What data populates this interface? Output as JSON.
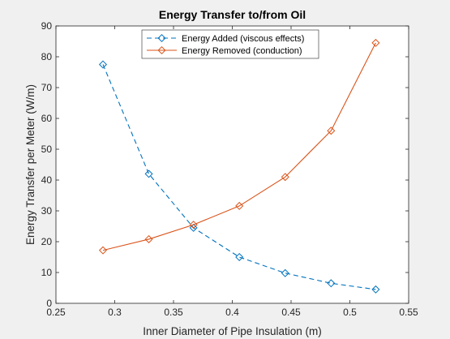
{
  "chart_data": {
    "type": "line",
    "title": "Energy Transfer to/from Oil",
    "xlabel": "Inner Diameter of Pipe Insulation (m)",
    "ylabel": "Energy Transfer per Meter (W/m)",
    "xlim": [
      0.25,
      0.55
    ],
    "ylim": [
      0,
      90
    ],
    "xticks": [
      "0.25",
      "0.3",
      "0.35",
      "0.4",
      "0.45",
      "0.5",
      "0.55"
    ],
    "yticks": [
      "0",
      "10",
      "20",
      "30",
      "40",
      "50",
      "60",
      "70",
      "80",
      "90"
    ],
    "grid": false,
    "legend_position": "top-center",
    "series": [
      {
        "name": "Energy Added (viscous effects)",
        "color": "#0072BD",
        "line_style": "dashed",
        "marker": "diamond",
        "x": [
          0.29,
          0.329,
          0.367,
          0.406,
          0.445,
          0.484,
          0.522
        ],
        "y": [
          77.5,
          42,
          24.5,
          15,
          9.8,
          6.5,
          4.5
        ]
      },
      {
        "name": "Energy Removed (conduction)",
        "color": "#D95319",
        "line_style": "solid",
        "marker": "diamond",
        "x": [
          0.29,
          0.329,
          0.367,
          0.406,
          0.445,
          0.484,
          0.522
        ],
        "y": [
          17.2,
          20.8,
          25.5,
          31.6,
          41,
          56,
          84.5
        ]
      }
    ]
  }
}
